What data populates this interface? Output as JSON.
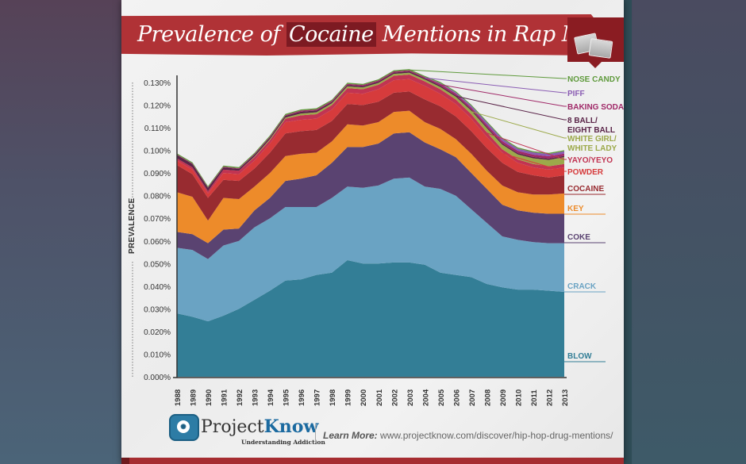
{
  "title": {
    "prefix": "Prevalence of",
    "highlight": "Cocaine",
    "suffix": "Mentions in Rap Music"
  },
  "icons": {
    "corner": "cocaine-bags-icon",
    "logo": "brain-speech-bubble-icon"
  },
  "footer": {
    "brand_project": "Project",
    "brand_know": "Know",
    "tagline": "Understanding Addiction",
    "learn_more_label": "Learn More:",
    "url": "www.projectknow.com/discover/hip-hop-drug-mentions/"
  },
  "chart_data": {
    "type": "area",
    "stacked": true,
    "title": "Prevalence of Cocaine Mentions in Rap Music",
    "xlabel": "",
    "ylabel": "PREVALENCE",
    "ylim": [
      0,
      0.13
    ],
    "y_unit": "%",
    "yticks": [
      "0.000%",
      "0.010%",
      "0.020%",
      "0.030%",
      "0.040%",
      "0.050%",
      "0.060%",
      "0.070%",
      "0.080%",
      "0.090%",
      "0.100%",
      "0.110%",
      "0.120%",
      "0.130%"
    ],
    "x": [
      "1988",
      "1989",
      "1990",
      "1991",
      "1992",
      "1993",
      "1994",
      "1995",
      "1996",
      "1997",
      "1998",
      "1999",
      "2000",
      "2001",
      "2002",
      "2003",
      "2004",
      "2005",
      "2006",
      "2007",
      "2008",
      "2009",
      "2010",
      "2011",
      "2012",
      "2013"
    ],
    "legend_placement": "right",
    "series": [
      {
        "name": "BLOW",
        "color": "#337e96",
        "values": [
          0.028,
          0.0265,
          0.0245,
          0.027,
          0.03,
          0.034,
          0.038,
          0.0425,
          0.043,
          0.045,
          0.046,
          0.0515,
          0.05,
          0.05,
          0.0505,
          0.0505,
          0.0495,
          0.046,
          0.045,
          0.044,
          0.041,
          0.0395,
          0.0385,
          0.0385,
          0.038,
          0.0375
        ]
      },
      {
        "name": "CRACK",
        "color": "#6aa3c3",
        "values": [
          0.029,
          0.0295,
          0.0275,
          0.031,
          0.03,
          0.032,
          0.032,
          0.0325,
          0.032,
          0.03,
          0.033,
          0.0325,
          0.0335,
          0.0345,
          0.037,
          0.0375,
          0.0345,
          0.037,
          0.035,
          0.03,
          0.027,
          0.0225,
          0.022,
          0.021,
          0.021,
          0.0215
        ]
      },
      {
        "name": "COKE",
        "color": "#5a4371",
        "values": [
          0.007,
          0.007,
          0.007,
          0.007,
          0.0055,
          0.0075,
          0.009,
          0.0115,
          0.0125,
          0.014,
          0.0155,
          0.0175,
          0.018,
          0.0185,
          0.02,
          0.02,
          0.0195,
          0.0175,
          0.017,
          0.016,
          0.015,
          0.014,
          0.013,
          0.013,
          0.013,
          0.013
        ]
      },
      {
        "name": "KEY",
        "color": "#ed8b2a",
        "values": [
          0.0175,
          0.0165,
          0.01,
          0.014,
          0.013,
          0.0105,
          0.011,
          0.011,
          0.011,
          0.01,
          0.0095,
          0.01,
          0.0095,
          0.0095,
          0.0095,
          0.0095,
          0.009,
          0.009,
          0.008,
          0.0085,
          0.008,
          0.0085,
          0.008,
          0.008,
          0.0085,
          0.009
        ]
      },
      {
        "name": "COCAINE",
        "color": "#982b30",
        "values": [
          0.012,
          0.01,
          0.01,
          0.008,
          0.008,
          0.008,
          0.009,
          0.01,
          0.01,
          0.01,
          0.009,
          0.009,
          0.009,
          0.009,
          0.0085,
          0.0085,
          0.01,
          0.01,
          0.01,
          0.01,
          0.01,
          0.01,
          0.009,
          0.0085,
          0.0075,
          0.008
        ]
      },
      {
        "name": "POWDER",
        "color": "#d63b3c",
        "values": [
          0.002,
          0.002,
          0.002,
          0.003,
          0.003,
          0.0035,
          0.004,
          0.005,
          0.005,
          0.005,
          0.005,
          0.005,
          0.005,
          0.0055,
          0.0055,
          0.0055,
          0.006,
          0.0055,
          0.0055,
          0.0055,
          0.005,
          0.0045,
          0.004,
          0.0035,
          0.0035,
          0.0035
        ]
      },
      {
        "name": "YAYO/YEYO",
        "color": "#c13452",
        "values": [
          0.001,
          0.001,
          0.001,
          0.0015,
          0.0015,
          0.0015,
          0.0015,
          0.0015,
          0.002,
          0.002,
          0.002,
          0.002,
          0.002,
          0.002,
          0.002,
          0.002,
          0.002,
          0.002,
          0.002,
          0.002,
          0.002,
          0.0015,
          0.0015,
          0.0015,
          0.0015,
          0.0015
        ]
      },
      {
        "name": "WHITE GIRL/ WHITE LADY",
        "color": "#9ca94a",
        "values": [
          0.0,
          0.0,
          0.0,
          0.0,
          0.0,
          0.0003,
          0.0005,
          0.0005,
          0.0008,
          0.0008,
          0.0008,
          0.0008,
          0.0008,
          0.0008,
          0.0008,
          0.0008,
          0.0008,
          0.001,
          0.0012,
          0.0015,
          0.0018,
          0.002,
          0.0022,
          0.0025,
          0.0028,
          0.003
        ]
      },
      {
        "name": "8 BALL/ EIGHT BALL",
        "color": "#5a2448",
        "values": [
          0.0015,
          0.0015,
          0.0015,
          0.001,
          0.0008,
          0.0008,
          0.0008,
          0.0008,
          0.0008,
          0.0008,
          0.0006,
          0.0006,
          0.0006,
          0.0006,
          0.0006,
          0.0006,
          0.0006,
          0.0006,
          0.0006,
          0.0006,
          0.0006,
          0.0006,
          0.0006,
          0.0006,
          0.0006,
          0.0006
        ]
      },
      {
        "name": "BAKING SODA",
        "color": "#a02968",
        "values": [
          0.0002,
          0.0002,
          0.0002,
          0.0003,
          0.0003,
          0.0003,
          0.0003,
          0.0003,
          0.0005,
          0.0005,
          0.0005,
          0.0005,
          0.0005,
          0.0005,
          0.0005,
          0.0005,
          0.0005,
          0.0008,
          0.0008,
          0.0008,
          0.001,
          0.001,
          0.001,
          0.001,
          0.001,
          0.001
        ]
      },
      {
        "name": "PIFF",
        "color": "#8a5cb3",
        "values": [
          0.0,
          0.0,
          0.0,
          0.0,
          0.0,
          0.0,
          0.0,
          0.0,
          0.0,
          0.0,
          0.0,
          0.0,
          0.0,
          0.0,
          0.0,
          0.0,
          0.0,
          0.0003,
          0.0005,
          0.0008,
          0.001,
          0.001,
          0.001,
          0.001,
          0.001,
          0.001
        ]
      },
      {
        "name": "NOSE CANDY",
        "color": "#5f9a3c",
        "values": [
          0.0005,
          0.0005,
          0.0005,
          0.0005,
          0.0005,
          0.0005,
          0.0005,
          0.0005,
          0.0005,
          0.0005,
          0.0005,
          0.0005,
          0.0005,
          0.0005,
          0.0005,
          0.0005,
          0.0005,
          0.0005,
          0.0005,
          0.0005,
          0.0005,
          0.0005,
          0.0005,
          0.0005,
          0.0005,
          0.0005
        ]
      }
    ]
  }
}
